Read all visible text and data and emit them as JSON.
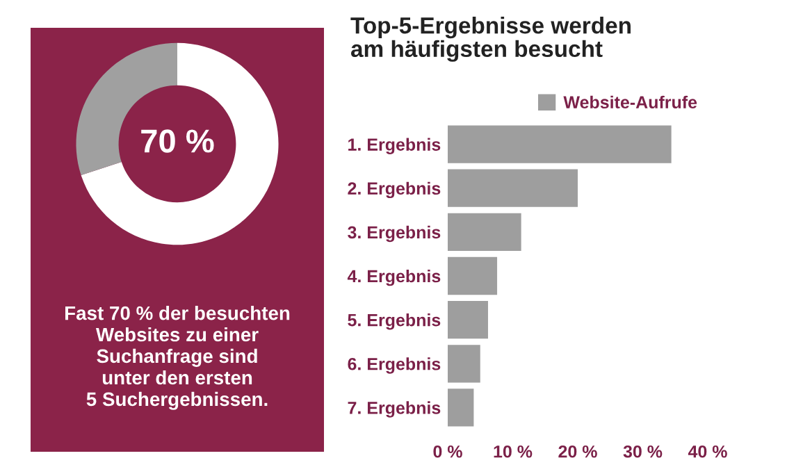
{
  "chart_data": [
    {
      "type": "donut",
      "categories": [
        null,
        null
      ],
      "values": [
        70,
        30
      ],
      "colors": [
        "#ffffff",
        "#a0a0a0"
      ],
      "annotations": [
        "70 %",
        "Fast 70 % der besuchten\nWebsites zu einer\nSuchanfrage sind\nunter den ersten\n5 Suchergebnissen."
      ]
    },
    {
      "type": "bar",
      "orientation": "horizontal",
      "title": "Top-5-Ergebnisse werden\nam häufigsten besucht",
      "categories": [
        "1. Ergebnis",
        "2. Ergebnis",
        "3. Ergebnis",
        "4. Ergebnis",
        "5. Ergebnis",
        "6. Ergebnis",
        "7. Ergebnis"
      ],
      "series": [
        {
          "name": "Website-Aufrufe",
          "color": "#9e9e9e",
          "values": [
            34.4,
            20.0,
            11.3,
            7.6,
            6.2,
            5.0,
            4.0
          ]
        }
      ],
      "xlim": [
        0,
        40
      ],
      "xticks": [
        {
          "value": 0,
          "label": "0 %"
        },
        {
          "value": 10,
          "label": "10 %"
        },
        {
          "value": 20,
          "label": "20 %"
        },
        {
          "value": 30,
          "label": "30 %"
        },
        {
          "value": 40,
          "label": "40 %"
        }
      ],
      "grid": false,
      "legend": "top right"
    }
  ]
}
